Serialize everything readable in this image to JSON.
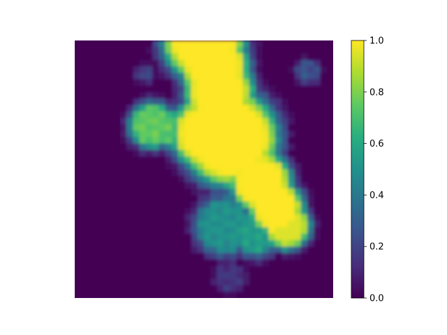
{
  "chart_data": {
    "type": "heatmap",
    "title": "",
    "xlabel": "",
    "ylabel": "",
    "axes_visible": false,
    "colormap": "viridis",
    "colorbar": {
      "vmin": 0.0,
      "vmax": 1.0,
      "ticks": [
        {
          "value": 0.0,
          "label": "0.0"
        },
        {
          "value": 0.2,
          "label": "0.2"
        },
        {
          "value": 0.4,
          "label": "0.4"
        },
        {
          "value": 0.6,
          "label": "0.6"
        },
        {
          "value": 0.8,
          "label": "0.8"
        },
        {
          "value": 1.0,
          "label": "1.0"
        }
      ],
      "placement": "right"
    },
    "grid_size": 40,
    "blobs": [
      {
        "cx": 0.5,
        "cy": 0.0,
        "r": 0.11,
        "v": 1.0
      },
      {
        "cx": 0.54,
        "cy": 0.1,
        "r": 0.09,
        "v": 1.0
      },
      {
        "cx": 0.56,
        "cy": 0.2,
        "r": 0.09,
        "v": 1.0
      },
      {
        "cx": 0.6,
        "cy": 0.38,
        "r": 0.13,
        "v": 1.0
      },
      {
        "cx": 0.52,
        "cy": 0.36,
        "r": 0.1,
        "v": 1.0
      },
      {
        "cx": 0.72,
        "cy": 0.55,
        "r": 0.08,
        "v": 1.0
      },
      {
        "cx": 0.78,
        "cy": 0.65,
        "r": 0.07,
        "v": 1.0
      },
      {
        "cx": 0.82,
        "cy": 0.72,
        "r": 0.06,
        "v": 0.95
      },
      {
        "cx": 0.3,
        "cy": 0.33,
        "r": 0.06,
        "v": 0.75
      },
      {
        "cx": 0.4,
        "cy": 0.35,
        "r": 0.05,
        "v": 0.7
      },
      {
        "cx": 0.58,
        "cy": 0.72,
        "r": 0.08,
        "v": 0.5
      },
      {
        "cx": 0.7,
        "cy": 0.75,
        "r": 0.06,
        "v": 0.55
      },
      {
        "cx": 0.9,
        "cy": 0.12,
        "r": 0.03,
        "v": 0.25
      },
      {
        "cx": 0.27,
        "cy": 0.13,
        "r": 0.02,
        "v": 0.2
      },
      {
        "cx": 0.6,
        "cy": 0.92,
        "r": 0.04,
        "v": 0.15
      }
    ]
  }
}
